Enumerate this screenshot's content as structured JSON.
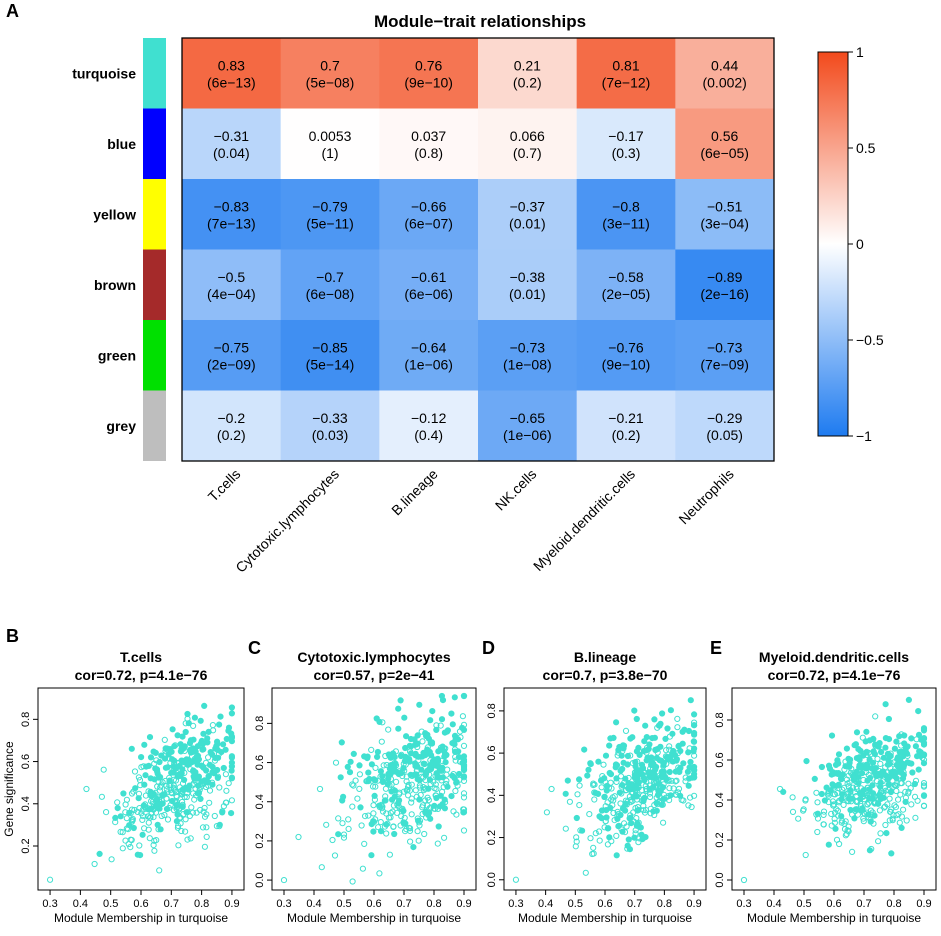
{
  "panel_letters": {
    "A": "A",
    "B": "B",
    "C": "C",
    "D": "D",
    "E": "E"
  },
  "colors": {
    "turquoise": "#40E0D0",
    "blue": "#0000FF",
    "yellow": "#FFFF00",
    "brown": "#A52A2A",
    "green": "#00E000",
    "grey": "#BEBEBE",
    "scale_low": "#1E7BF0",
    "scale_mid": "#FFFFFF",
    "scale_high": "#F24A1C",
    "point": "#40E0D0"
  },
  "chart_data": [
    {
      "type": "heatmap",
      "title": "Module−trait relationships",
      "rows": [
        "turquoise",
        "blue",
        "yellow",
        "brown",
        "green",
        "grey"
      ],
      "columns": [
        "T.cells",
        "Cytotoxic.lymphocytes",
        "B.lineage",
        "NK.cells",
        "Myeloid.dendritic.cells",
        "Neutrophils"
      ],
      "values": [
        [
          0.83,
          0.7,
          0.76,
          0.21,
          0.81,
          0.44
        ],
        [
          -0.31,
          0.0053,
          0.037,
          0.066,
          -0.17,
          0.56
        ],
        [
          -0.83,
          -0.79,
          -0.66,
          -0.37,
          -0.8,
          -0.51
        ],
        [
          -0.5,
          -0.7,
          -0.61,
          -0.38,
          -0.58,
          -0.89
        ],
        [
          -0.75,
          -0.85,
          -0.64,
          -0.73,
          -0.76,
          -0.73
        ],
        [
          -0.2,
          -0.33,
          -0.12,
          -0.65,
          -0.21,
          -0.29
        ]
      ],
      "value_labels": [
        [
          "0.83",
          "0.7",
          "0.76",
          "0.21",
          "0.81",
          "0.44"
        ],
        [
          "−0.31",
          "0.0053",
          "0.037",
          "0.066",
          "−0.17",
          "0.56"
        ],
        [
          "−0.83",
          "−0.79",
          "−0.66",
          "−0.37",
          "−0.8",
          "−0.51"
        ],
        [
          "−0.5",
          "−0.7",
          "−0.61",
          "−0.38",
          "−0.58",
          "−0.89"
        ],
        [
          "−0.75",
          "−0.85",
          "−0.64",
          "−0.73",
          "−0.76",
          "−0.73"
        ],
        [
          "−0.2",
          "−0.33",
          "−0.12",
          "−0.65",
          "−0.21",
          "−0.29"
        ]
      ],
      "pvalue_labels": [
        [
          "(6e−13)",
          "(5e−08)",
          "(9e−10)",
          "(0.2)",
          "(7e−12)",
          "(0.002)"
        ],
        [
          "(0.04)",
          "(1)",
          "(0.8)",
          "(0.7)",
          "(0.3)",
          "(6e−05)"
        ],
        [
          "(7e−13)",
          "(5e−11)",
          "(6e−07)",
          "(0.01)",
          "(3e−11)",
          "(3e−04)"
        ],
        [
          "(4e−04)",
          "(6e−08)",
          "(6e−06)",
          "(0.01)",
          "(2e−05)",
          "(2e−16)"
        ],
        [
          "(2e−09)",
          "(5e−14)",
          "(1e−06)",
          "(1e−08)",
          "(9e−10)",
          "(7e−09)"
        ],
        [
          "(0.2)",
          "(0.03)",
          "(0.4)",
          "(1e−06)",
          "(0.2)",
          "(0.05)"
        ]
      ],
      "colorbar": {
        "range": [
          -1,
          1
        ],
        "ticks": [
          1,
          0.5,
          0,
          -0.5,
          -1
        ],
        "tick_labels": [
          "1",
          "0.5",
          "0",
          "−0.5",
          "−1"
        ]
      }
    },
    {
      "type": "scatter",
      "panel": "B",
      "title": "T.cells",
      "subtitle": "cor=0.72, p=4.1e−76",
      "xlabel": "Module Membership in turquoise",
      "ylabel": "Gene significance",
      "xlim": [
        0.28,
        0.92
      ],
      "ylim": [
        0.02,
        0.92
      ],
      "xticks": [
        0.3,
        0.4,
        0.5,
        0.6,
        0.7,
        0.8,
        0.9
      ],
      "xtick_labels": [
        "0.3",
        "0.4",
        "0.5",
        "0.6",
        "0.7",
        "0.8",
        "0.9"
      ],
      "yticks": [
        0.2,
        0.4,
        0.6,
        0.8
      ],
      "ytick_labels": [
        "0.2",
        "0.4",
        "0.6",
        "0.8"
      ],
      "cor": 0.72,
      "seed": 11
    },
    {
      "type": "scatter",
      "panel": "C",
      "title": "Cytotoxic.lymphocytes",
      "subtitle": "cor=0.57, p=2e−41",
      "xlabel": "Module Membership in turquoise",
      "ylabel": "",
      "xlim": [
        0.28,
        0.92
      ],
      "ylim": [
        -0.02,
        0.95
      ],
      "xticks": [
        0.3,
        0.4,
        0.5,
        0.6,
        0.7,
        0.8,
        0.9
      ],
      "xtick_labels": [
        "0.3",
        "0.4",
        "0.5",
        "0.6",
        "0.7",
        "0.8",
        "0.9"
      ],
      "yticks": [
        0.0,
        0.2,
        0.4,
        0.6,
        0.8
      ],
      "ytick_labels": [
        "0.0",
        "0.2",
        "0.4",
        "0.6",
        "0.8"
      ],
      "cor": 0.57,
      "seed": 23
    },
    {
      "type": "scatter",
      "panel": "D",
      "title": "B.lineage",
      "subtitle": "cor=0.7, p=3.8e−70",
      "xlabel": "Module Membership in turquoise",
      "ylabel": "",
      "xlim": [
        0.28,
        0.92
      ],
      "ylim": [
        -0.02,
        0.88
      ],
      "xticks": [
        0.3,
        0.4,
        0.5,
        0.6,
        0.7,
        0.8,
        0.9
      ],
      "xtick_labels": [
        "0.3",
        "0.4",
        "0.5",
        "0.6",
        "0.7",
        "0.8",
        "0.9"
      ],
      "yticks": [
        0.0,
        0.2,
        0.4,
        0.6,
        0.8
      ],
      "ytick_labels": [
        "0.0",
        "0.2",
        "0.4",
        "0.6",
        "0.8"
      ],
      "cor": 0.7,
      "seed": 37
    },
    {
      "type": "scatter",
      "panel": "E",
      "title": "Myeloid.dendritic.cells",
      "subtitle": "cor=0.72, p=4.1e−76",
      "xlabel": "Module Membership in turquoise",
      "ylabel": "",
      "xlim": [
        0.28,
        0.92
      ],
      "ylim": [
        -0.02,
        0.93
      ],
      "xticks": [
        0.3,
        0.4,
        0.5,
        0.6,
        0.7,
        0.8,
        0.9
      ],
      "xtick_labels": [
        "0.3",
        "0.4",
        "0.5",
        "0.6",
        "0.7",
        "0.8",
        "0.9"
      ],
      "yticks": [
        0.0,
        0.2,
        0.4,
        0.6,
        0.8
      ],
      "ytick_labels": [
        "0.0",
        "0.2",
        "0.4",
        "0.6",
        "0.8"
      ],
      "cor": 0.72,
      "seed": 53
    }
  ]
}
